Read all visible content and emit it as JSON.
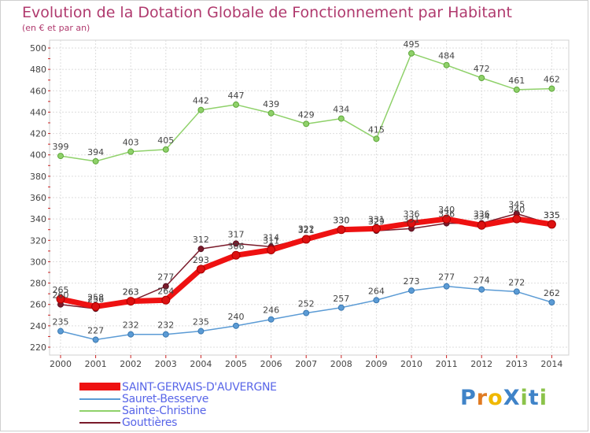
{
  "title": "Evolution de la Dotation Globale de Fonctionnement par Habitant",
  "subtitle": "(en € et par an)",
  "chart_data": {
    "type": "line",
    "title": "Evolution de la Dotation Globale de Fonctionnement par Habitant",
    "subtitle": "(en € et par an)",
    "x": [
      2000,
      2001,
      2002,
      2003,
      2004,
      2005,
      2006,
      2007,
      2008,
      2009,
      2010,
      2011,
      2012,
      2013,
      2014
    ],
    "ylim": [
      220,
      500
    ],
    "yticks": [
      220,
      240,
      260,
      280,
      300,
      320,
      340,
      360,
      380,
      400,
      420,
      440,
      460,
      480,
      500
    ],
    "grid": true,
    "legend": "bottom-left",
    "series": [
      {
        "name": "Gouttières",
        "color": "#7a1a2a",
        "values": [
          260,
          256,
          263,
          277,
          312,
          317,
          314,
          322,
          330,
          329,
          331,
          336,
          336,
          345,
          335
        ]
      },
      {
        "name": "Sauret-Besserve",
        "color": "#5b9bd5",
        "values": [
          235,
          227,
          232,
          232,
          235,
          240,
          246,
          252,
          257,
          264,
          273,
          277,
          274,
          272,
          262
        ]
      },
      {
        "name": "Sainte-Christine",
        "color": "#8fd16a",
        "values": [
          399,
          394,
          403,
          405,
          442,
          447,
          439,
          429,
          434,
          415,
          495,
          484,
          472,
          461,
          462
        ]
      },
      {
        "name": "SAINT-GERVAIS-D'AUVERGNE",
        "color": "#ee1111",
        "values": [
          265,
          258,
          263,
          264,
          293,
          306,
          311,
          321,
          330,
          331,
          336,
          340,
          334,
          340,
          335
        ]
      }
    ]
  },
  "legend_items": [
    {
      "label": "SAINT-GERVAIS-D'AUVERGNE",
      "color": "#ee1111"
    },
    {
      "label": "Sauret-Besserve",
      "color": "#5b9bd5"
    },
    {
      "label": "Sainte-Christine",
      "color": "#8fd16a"
    },
    {
      "label": "Gouttières",
      "color": "#7a1a2a"
    }
  ],
  "logo": {
    "text": "ProXiti",
    "letters": [
      "P",
      "r",
      "o",
      "X",
      "i",
      "t",
      "i"
    ],
    "letter_colors": [
      "#3f83c8",
      "#e07b22",
      "#f0b800",
      "#3f83c8",
      "#8bc34a",
      "#3f83c8",
      "#8bc34a"
    ]
  }
}
